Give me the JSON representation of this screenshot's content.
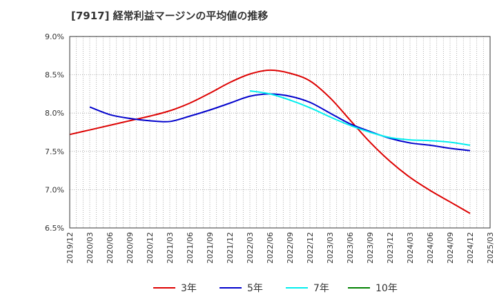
{
  "title": "[7917]  経常利益マージンの平均値の推移",
  "chart_data": {
    "type": "line",
    "title": "[7917]  経常利益マージンの平均値の推移",
    "xlabel": "",
    "ylabel": "",
    "ylim": [
      6.5,
      9.0
    ],
    "yticks": [
      "6.5%",
      "7.0%",
      "7.5%",
      "8.0%",
      "8.5%",
      "9.0%"
    ],
    "ytick_values": [
      6.5,
      7.0,
      7.5,
      8.0,
      8.5,
      9.0
    ],
    "xticks": [
      "2019/12",
      "2020/03",
      "2020/06",
      "2020/09",
      "2020/12",
      "2021/03",
      "2021/06",
      "2021/09",
      "2021/12",
      "2022/03",
      "2022/06",
      "2022/09",
      "2022/12",
      "2023/03",
      "2023/06",
      "2023/09",
      "2023/12",
      "2024/03",
      "2024/06",
      "2024/09",
      "2024/12",
      "2025/03"
    ],
    "grid": true,
    "legend_position": "bottom",
    "series": [
      {
        "name": "3年",
        "color": "#dd0000",
        "x": [
          "2019/12",
          "2020/03",
          "2020/06",
          "2020/09",
          "2020/12",
          "2021/03",
          "2021/06",
          "2021/09",
          "2021/12",
          "2022/03",
          "2022/06",
          "2022/09",
          "2022/12",
          "2023/03",
          "2023/06",
          "2023/09",
          "2023/12",
          "2024/03",
          "2024/06",
          "2024/09",
          "2024/12"
        ],
        "values": [
          7.72,
          7.78,
          7.84,
          7.9,
          7.96,
          8.03,
          8.13,
          8.26,
          8.4,
          8.51,
          8.56,
          8.52,
          8.42,
          8.2,
          7.91,
          7.62,
          7.37,
          7.16,
          6.99,
          6.84,
          6.69
        ]
      },
      {
        "name": "5年",
        "color": "#0000cc",
        "x": [
          "2020/03",
          "2020/06",
          "2020/09",
          "2020/12",
          "2021/03",
          "2021/06",
          "2021/09",
          "2021/12",
          "2022/03",
          "2022/06",
          "2022/09",
          "2022/12",
          "2023/03",
          "2023/06",
          "2023/09",
          "2023/12",
          "2024/03",
          "2024/06",
          "2024/09",
          "2024/12"
        ],
        "values": [
          8.08,
          7.98,
          7.93,
          7.9,
          7.89,
          7.96,
          8.04,
          8.13,
          8.22,
          8.25,
          8.22,
          8.14,
          8.0,
          7.86,
          7.76,
          7.67,
          7.61,
          7.58,
          7.54,
          7.51
        ]
      },
      {
        "name": "7年",
        "color": "#00eeee",
        "x": [
          "2022/03",
          "2022/06",
          "2022/09",
          "2022/12",
          "2023/03",
          "2023/06",
          "2023/09",
          "2023/12",
          "2024/03",
          "2024/06",
          "2024/09",
          "2024/12"
        ],
        "values": [
          8.29,
          8.25,
          8.17,
          8.07,
          7.95,
          7.84,
          7.75,
          7.68,
          7.65,
          7.64,
          7.62,
          7.58
        ]
      },
      {
        "name": "10年",
        "color": "#008000",
        "x": [],
        "values": []
      }
    ]
  }
}
